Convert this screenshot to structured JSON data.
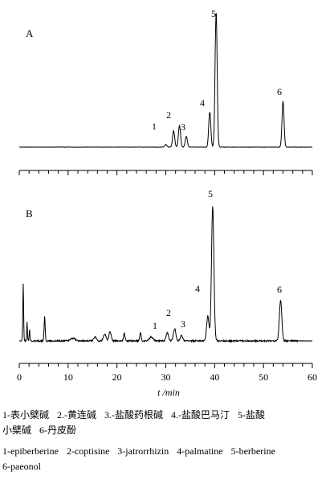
{
  "chart_data": [
    {
      "type": "line",
      "panel_label": "A",
      "xlim": [
        0,
        60
      ],
      "peaks": [
        {
          "label": "1",
          "x": 30.0,
          "height": 0.02
        },
        {
          "label": "2",
          "x": 31.6,
          "height": 0.12
        },
        {
          "label": "3",
          "x": 32.8,
          "height": 0.16
        },
        {
          "label": "3",
          "x": 34.2,
          "height": 0.08
        },
        {
          "label": "4",
          "x": 39.0,
          "height": 0.26
        },
        {
          "label": "5",
          "x": 40.3,
          "height": 1.0
        },
        {
          "label": "6",
          "x": 54.0,
          "height": 0.34
        }
      ],
      "peak_labels": [
        "1",
        "2",
        "3",
        "4",
        "5",
        "6"
      ]
    },
    {
      "type": "line",
      "panel_label": "B",
      "xlim": [
        0,
        60
      ],
      "xlabel": "t /min",
      "xticks": [
        0,
        10,
        20,
        30,
        40,
        50,
        60
      ],
      "peak_labels": [
        "1",
        "2",
        "3",
        "4",
        "5",
        "6"
      ],
      "peaks": [
        {
          "label": "1",
          "x": 30.3,
          "height": 0.06
        },
        {
          "label": "2",
          "x": 31.8,
          "height": 0.09
        },
        {
          "label": "3",
          "x": 33.2,
          "height": 0.04
        },
        {
          "label": "4",
          "x": 38.6,
          "height": 0.18
        },
        {
          "label": "5",
          "x": 39.6,
          "height": 1.0
        },
        {
          "label": "6",
          "x": 53.5,
          "height": 0.3
        }
      ]
    }
  ],
  "caption": {
    "line1": [
      "1-表小檗碱",
      "2.-黄连碱",
      "3.-盐酸药根碱",
      "4.-盐酸巴马汀",
      "5-盐酸"
    ],
    "line1b": [
      "小檗碱",
      "6-丹皮酚"
    ],
    "line2": [
      "1-epiberberine",
      "2-coptisine",
      "3-jatrorrhizin",
      "4-palmatine",
      "5-berberine"
    ],
    "line2b": [
      "6-paeonol"
    ]
  }
}
